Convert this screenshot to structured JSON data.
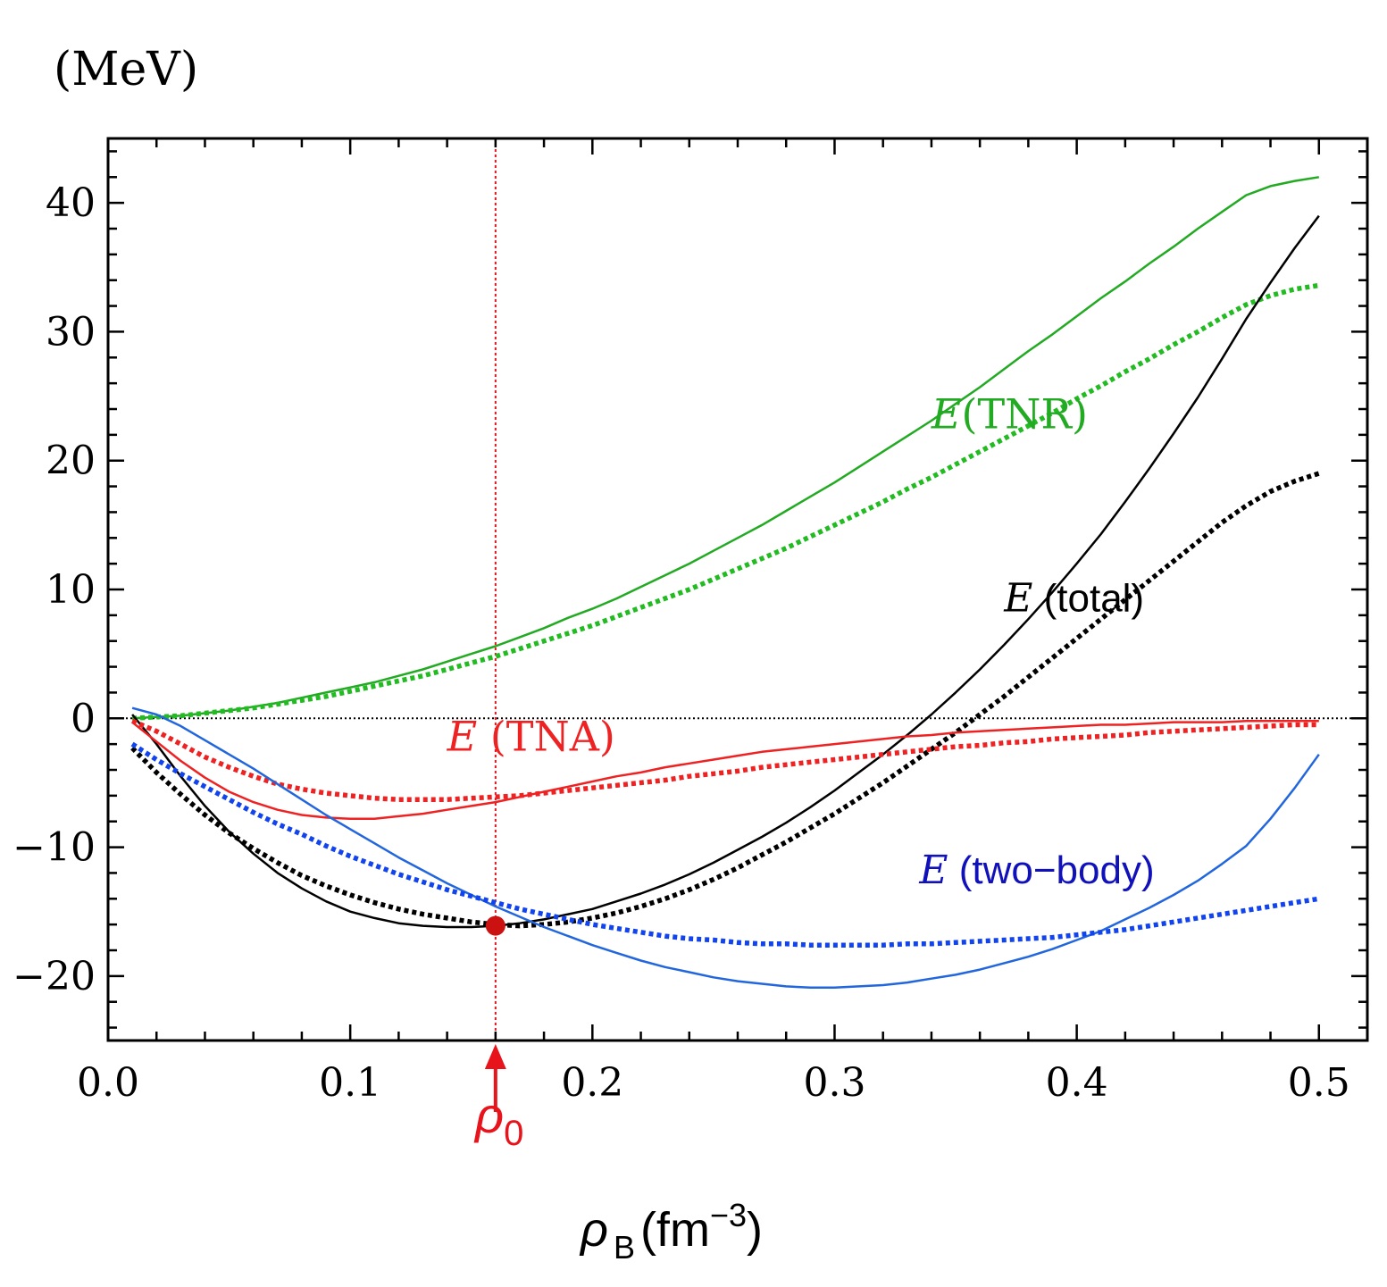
{
  "chart_data": {
    "type": "line",
    "unit_label": "(MeV)",
    "xlabel": {
      "symbol": "ρ",
      "subscript": "B",
      "unit": "(fm",
      "exponent": "−3",
      "close": ")"
    },
    "xlim": [
      0.0,
      0.52
    ],
    "ylim": [
      -25,
      45
    ],
    "xticks": [
      0.0,
      0.1,
      0.2,
      0.3,
      0.4,
      0.5
    ],
    "xtick_labels": [
      "0.0",
      "0.1",
      "0.2",
      "0.3",
      "0.4",
      "0.5"
    ],
    "yticks": [
      -20,
      -10,
      0,
      10,
      20,
      30,
      40
    ],
    "ytick_labels": [
      "−20",
      "−10",
      "0",
      "10",
      "20",
      "30",
      "40"
    ],
    "reference_line": {
      "y": 0,
      "style": "dotted",
      "color": "#000000"
    },
    "marker_line": {
      "x": 0.16,
      "color": "#e8141c",
      "symbol": "ρ",
      "subscript": "0"
    },
    "saturation_point": {
      "x": 0.16,
      "y": -16.1,
      "color": "#cc1111"
    },
    "x": [
      0.01,
      0.02,
      0.03,
      0.04,
      0.05,
      0.06,
      0.07,
      0.08,
      0.09,
      0.1,
      0.11,
      0.12,
      0.13,
      0.14,
      0.15,
      0.16,
      0.17,
      0.18,
      0.19,
      0.2,
      0.21,
      0.22,
      0.23,
      0.24,
      0.25,
      0.26,
      0.27,
      0.28,
      0.29,
      0.3,
      0.31,
      0.32,
      0.33,
      0.34,
      0.35,
      0.36,
      0.37,
      0.38,
      0.39,
      0.4,
      0.41,
      0.42,
      0.43,
      0.44,
      0.45,
      0.46,
      0.47,
      0.48,
      0.49,
      0.5
    ],
    "series": [
      {
        "name": "E(TNR) solid",
        "color": "#22aa22",
        "style": "solid",
        "values": [
          0.0,
          0.1,
          0.2,
          0.4,
          0.6,
          0.9,
          1.2,
          1.6,
          2.0,
          2.4,
          2.8,
          3.3,
          3.8,
          4.4,
          5.0,
          5.6,
          6.3,
          7.0,
          7.8,
          8.5,
          9.3,
          10.2,
          11.1,
          12.0,
          13.0,
          14.0,
          15.0,
          16.1,
          17.2,
          18.3,
          19.5,
          20.7,
          21.9,
          23.1,
          24.4,
          25.7,
          27.1,
          28.5,
          29.8,
          31.2,
          32.6,
          33.9,
          35.3,
          36.6,
          38.0,
          39.3,
          40.6,
          41.3,
          41.7,
          42.0
        ]
      },
      {
        "name": "E(TNR) dotted",
        "color": "#22bb22",
        "style": "dotted",
        "values": [
          0.0,
          0.1,
          0.2,
          0.4,
          0.6,
          0.8,
          1.1,
          1.4,
          1.7,
          2.1,
          2.5,
          2.9,
          3.3,
          3.8,
          4.3,
          4.8,
          5.4,
          6.0,
          6.6,
          7.2,
          7.9,
          8.6,
          9.3,
          10.0,
          10.8,
          11.6,
          12.4,
          13.2,
          14.1,
          15.0,
          15.9,
          16.8,
          17.8,
          18.7,
          19.7,
          20.7,
          21.7,
          22.7,
          23.7,
          24.8,
          25.8,
          26.9,
          27.9,
          29.0,
          30.0,
          31.1,
          32.1,
          32.8,
          33.3,
          33.6
        ]
      },
      {
        "name": "E(total) solid",
        "color": "#000000",
        "style": "solid",
        "values": [
          0.3,
          -2.0,
          -4.5,
          -6.8,
          -8.8,
          -10.5,
          -12.0,
          -13.2,
          -14.2,
          -15.0,
          -15.5,
          -15.9,
          -16.1,
          -16.2,
          -16.2,
          -16.1,
          -15.9,
          -15.6,
          -15.2,
          -14.8,
          -14.2,
          -13.6,
          -12.9,
          -12.1,
          -11.2,
          -10.2,
          -9.2,
          -8.1,
          -6.9,
          -5.6,
          -4.2,
          -2.8,
          -1.3,
          0.3,
          2.0,
          3.8,
          5.7,
          7.7,
          9.8,
          12.0,
          14.3,
          16.8,
          19.4,
          22.1,
          24.9,
          27.9,
          31.0,
          33.8,
          36.5,
          39.0
        ]
      },
      {
        "name": "E(total) dotted",
        "color": "#000000",
        "style": "dotted",
        "values": [
          -2.3,
          -4.2,
          -5.9,
          -7.5,
          -8.9,
          -10.1,
          -11.2,
          -12.2,
          -13.0,
          -13.7,
          -14.3,
          -14.8,
          -15.2,
          -15.5,
          -15.8,
          -16.0,
          -16.1,
          -16.0,
          -15.8,
          -15.5,
          -15.1,
          -14.6,
          -14.0,
          -13.3,
          -12.5,
          -11.6,
          -10.6,
          -9.6,
          -8.5,
          -7.4,
          -6.2,
          -5.0,
          -3.7,
          -2.4,
          -1.1,
          0.3,
          1.7,
          3.2,
          4.7,
          6.2,
          7.7,
          9.2,
          10.7,
          12.2,
          13.7,
          15.2,
          16.5,
          17.6,
          18.4,
          19.0
        ]
      },
      {
        "name": "E(TNA) solid",
        "color": "#ee2222",
        "style": "solid",
        "values": [
          -0.3,
          -1.8,
          -3.3,
          -4.6,
          -5.7,
          -6.5,
          -7.1,
          -7.5,
          -7.7,
          -7.8,
          -7.8,
          -7.6,
          -7.4,
          -7.1,
          -6.8,
          -6.5,
          -6.1,
          -5.7,
          -5.3,
          -4.9,
          -4.5,
          -4.2,
          -3.8,
          -3.5,
          -3.2,
          -2.9,
          -2.6,
          -2.4,
          -2.2,
          -2.0,
          -1.8,
          -1.6,
          -1.4,
          -1.3,
          -1.1,
          -1.0,
          -0.9,
          -0.8,
          -0.7,
          -0.6,
          -0.5,
          -0.5,
          -0.4,
          -0.3,
          -0.3,
          -0.3,
          -0.2,
          -0.2,
          -0.2,
          -0.2
        ]
      },
      {
        "name": "E(TNA) dotted",
        "color": "#ee2222",
        "style": "dotted",
        "values": [
          -0.2,
          -1.0,
          -2.0,
          -3.0,
          -3.8,
          -4.5,
          -5.1,
          -5.5,
          -5.8,
          -6.0,
          -6.2,
          -6.3,
          -6.3,
          -6.3,
          -6.2,
          -6.1,
          -6.0,
          -5.8,
          -5.6,
          -5.4,
          -5.2,
          -5.0,
          -4.8,
          -4.5,
          -4.3,
          -4.1,
          -3.8,
          -3.6,
          -3.4,
          -3.2,
          -3.0,
          -2.8,
          -2.6,
          -2.4,
          -2.2,
          -2.1,
          -1.9,
          -1.8,
          -1.6,
          -1.5,
          -1.4,
          -1.3,
          -1.1,
          -1.0,
          -0.9,
          -0.8,
          -0.7,
          -0.6,
          -0.5,
          -0.5
        ]
      },
      {
        "name": "E(two-body) solid",
        "color": "#2266dd",
        "style": "solid",
        "values": [
          0.8,
          0.3,
          -0.6,
          -1.7,
          -2.8,
          -3.9,
          -5.1,
          -6.3,
          -7.5,
          -8.6,
          -9.7,
          -10.8,
          -11.8,
          -12.8,
          -13.7,
          -14.6,
          -15.4,
          -16.2,
          -16.9,
          -17.6,
          -18.2,
          -18.8,
          -19.3,
          -19.7,
          -20.1,
          -20.4,
          -20.6,
          -20.8,
          -20.9,
          -20.9,
          -20.8,
          -20.7,
          -20.5,
          -20.2,
          -19.9,
          -19.5,
          -19.0,
          -18.5,
          -17.9,
          -17.2,
          -16.5,
          -15.6,
          -14.7,
          -13.7,
          -12.6,
          -11.3,
          -9.9,
          -7.8,
          -5.4,
          -2.8
        ]
      },
      {
        "name": "E(two-body) dotted",
        "color": "#1144ee",
        "style": "dotted",
        "values": [
          -2.0,
          -3.2,
          -4.3,
          -5.3,
          -6.3,
          -7.3,
          -8.2,
          -9.0,
          -9.9,
          -10.7,
          -11.4,
          -12.1,
          -12.7,
          -13.3,
          -13.8,
          -14.3,
          -14.8,
          -15.2,
          -15.6,
          -16.0,
          -16.3,
          -16.6,
          -16.9,
          -17.1,
          -17.2,
          -17.4,
          -17.5,
          -17.5,
          -17.6,
          -17.6,
          -17.6,
          -17.6,
          -17.5,
          -17.5,
          -17.4,
          -17.3,
          -17.2,
          -17.1,
          -17.0,
          -16.8,
          -16.6,
          -16.4,
          -16.1,
          -15.8,
          -15.5,
          -15.2,
          -14.9,
          -14.6,
          -14.3,
          -14.0
        ]
      }
    ],
    "annotations": [
      {
        "id": "tnr",
        "math": "E",
        "text": "(TNR)",
        "color": "#22aa22",
        "x": 0.34,
        "y": 22.5,
        "font": "serif"
      },
      {
        "id": "total",
        "math": "E",
        "text": " (total)",
        "color": "#000000",
        "x": 0.37,
        "y": 8.3,
        "font": "sans"
      },
      {
        "id": "tna",
        "math": "E",
        "text": " (TNA)",
        "color": "#ee2222",
        "x": 0.14,
        "y": -2.5,
        "font": "serif"
      },
      {
        "id": "twobody",
        "math": "E",
        "text": " (two−body)",
        "color": "#1111bb",
        "x": 0.335,
        "y": -12.8,
        "font": "sans"
      }
    ]
  }
}
